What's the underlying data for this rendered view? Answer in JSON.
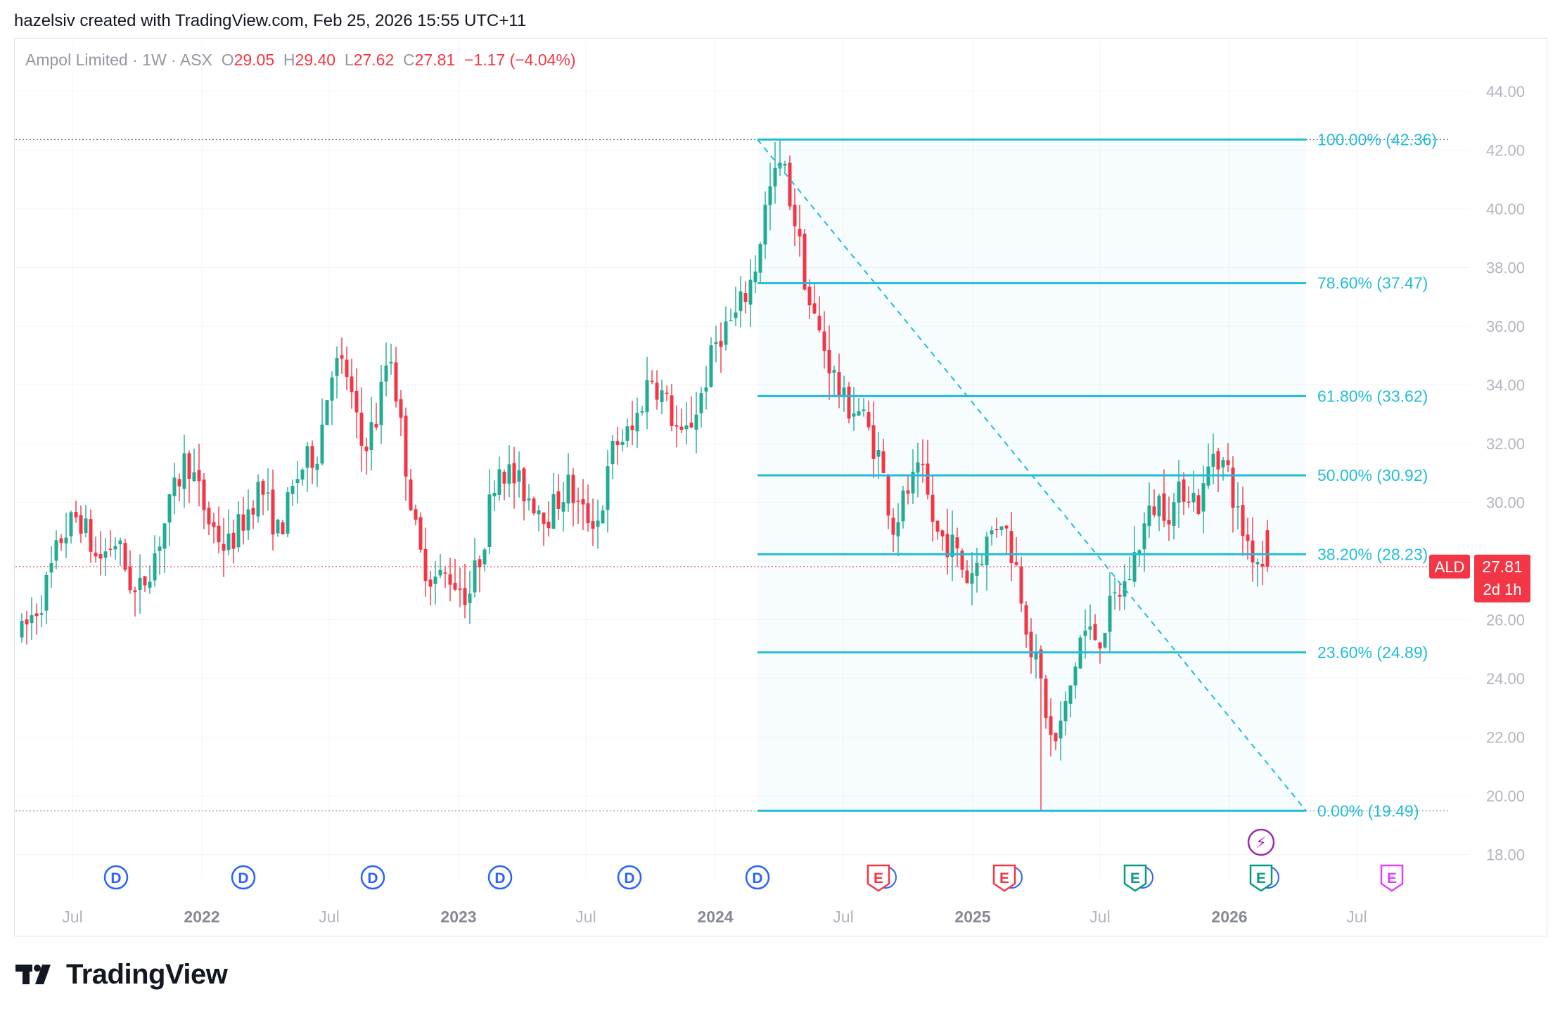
{
  "caption": "hazelsiv created with TradingView.com, Feb 25, 2026 15:55 UTC+11",
  "legend": {
    "symbol_name": "Ampol Limited",
    "interval": "1W",
    "exchange": "ASX",
    "separator": "·",
    "open_label": "O",
    "open": "29.05",
    "high_label": "H",
    "high": "29.40",
    "low_label": "L",
    "low": "27.62",
    "close_label": "C",
    "close": "27.81",
    "change": "−1.17 (−4.04%)"
  },
  "price_badge": {
    "ticker": "ALD",
    "price": "27.81",
    "countdown": "2d 1h"
  },
  "brand": "TradingView",
  "colors": {
    "up": "#22ab94",
    "down": "#f23645",
    "fib": "#22bcd8",
    "dividend": "#2962ff",
    "earnings": "#f23645",
    "earnings_future": "#e040fb",
    "earnings_green": "#089981",
    "axis_text": "#b2b5be",
    "grid": "#f3f4f6"
  },
  "chart_data": {
    "type": "candlestick",
    "interval": "weekly",
    "ylim": [
      17.0,
      45.0
    ],
    "y_ticks": [
      "44.00",
      "42.00",
      "40.00",
      "38.00",
      "36.00",
      "34.00",
      "32.00",
      "30.00",
      "28.00",
      "26.00",
      "24.00",
      "22.00",
      "20.00",
      "18.00"
    ],
    "x_ticks": [
      {
        "label": "Jul",
        "date": "2021-07-01",
        "bold": false
      },
      {
        "label": "2022",
        "date": "2022-01-01",
        "bold": true
      },
      {
        "label": "Jul",
        "date": "2022-07-01",
        "bold": false
      },
      {
        "label": "2023",
        "date": "2023-01-01",
        "bold": true
      },
      {
        "label": "Jul",
        "date": "2023-07-01",
        "bold": false
      },
      {
        "label": "2024",
        "date": "2024-01-01",
        "bold": true
      },
      {
        "label": "Jul",
        "date": "2024-07-01",
        "bold": false
      },
      {
        "label": "2025",
        "date": "2025-01-01",
        "bold": true
      },
      {
        "label": "Jul",
        "date": "2025-07-01",
        "bold": false
      },
      {
        "label": "2026",
        "date": "2026-01-01",
        "bold": true
      },
      {
        "label": "Jul",
        "date": "2026-07-01",
        "bold": false
      }
    ],
    "x_range": [
      "2021-04-20",
      "2026-09-10"
    ],
    "price_path": [
      [
        "2021-04-20",
        25.5
      ],
      [
        "2021-05-20",
        26.8
      ],
      [
        "2021-06-15",
        28.8
      ],
      [
        "2021-07-10",
        29.6
      ],
      [
        "2021-08-05",
        28.0
      ],
      [
        "2021-09-01",
        28.7
      ],
      [
        "2021-09-30",
        26.7
      ],
      [
        "2021-10-25",
        28.2
      ],
      [
        "2021-11-20",
        30.1
      ],
      [
        "2021-12-10",
        31.6
      ],
      [
        "2022-01-10",
        29.4
      ],
      [
        "2022-02-05",
        28.4
      ],
      [
        "2022-03-01",
        29.4
      ],
      [
        "2022-03-25",
        30.6
      ],
      [
        "2022-04-20",
        28.9
      ],
      [
        "2022-05-20",
        31.1
      ],
      [
        "2022-06-15",
        31.8
      ],
      [
        "2022-07-05",
        34.7
      ],
      [
        "2022-07-25",
        34.5
      ],
      [
        "2022-08-15",
        31.9
      ],
      [
        "2022-09-05",
        32.7
      ],
      [
        "2022-09-25",
        35.4
      ],
      [
        "2022-10-15",
        31.8
      ],
      [
        "2022-11-05",
        28.3
      ],
      [
        "2022-11-25",
        27.4
      ],
      [
        "2022-12-20",
        27.5
      ],
      [
        "2023-01-15",
        26.8
      ],
      [
        "2023-02-05",
        28.6
      ],
      [
        "2023-02-25",
        31.4
      ],
      [
        "2023-03-20",
        30.8
      ],
      [
        "2023-04-15",
        30.1
      ],
      [
        "2023-05-10",
        29.6
      ],
      [
        "2023-06-05",
        30.6
      ],
      [
        "2023-06-25",
        29.6
      ],
      [
        "2023-07-20",
        29.4
      ],
      [
        "2023-08-10",
        32.0
      ],
      [
        "2023-09-05",
        32.4
      ],
      [
        "2023-10-01",
        34.4
      ],
      [
        "2023-10-25",
        33.3
      ],
      [
        "2023-11-15",
        32.0
      ],
      [
        "2023-12-10",
        33.5
      ],
      [
        "2024-01-05",
        35.7
      ],
      [
        "2024-01-30",
        36.3
      ],
      [
        "2024-02-25",
        37.8
      ],
      [
        "2024-03-15",
        40.4
      ],
      [
        "2024-04-05",
        41.6
      ],
      [
        "2024-04-25",
        39.4
      ],
      [
        "2024-05-15",
        36.6
      ],
      [
        "2024-06-05",
        35.2
      ],
      [
        "2024-06-30",
        33.4
      ],
      [
        "2024-07-25",
        33.1
      ],
      [
        "2024-08-20",
        31.6
      ],
      [
        "2024-09-10",
        29.2
      ],
      [
        "2024-10-01",
        30.4
      ],
      [
        "2024-10-20",
        31.0
      ],
      [
        "2024-11-10",
        28.9
      ],
      [
        "2024-12-01",
        28.6
      ],
      [
        "2024-12-25",
        27.4
      ],
      [
        "2025-01-20",
        28.6
      ],
      [
        "2025-02-10",
        29.6
      ],
      [
        "2025-03-05",
        27.7
      ],
      [
        "2025-03-25",
        25.1
      ],
      [
        "2025-04-10",
        23.6
      ],
      [
        "2025-04-25",
        21.5
      ],
      [
        "2025-05-15",
        23.1
      ],
      [
        "2025-06-05",
        25.6
      ],
      [
        "2025-06-30",
        25.4
      ],
      [
        "2025-07-20",
        26.6
      ],
      [
        "2025-08-10",
        27.4
      ],
      [
        "2025-08-30",
        29.0
      ],
      [
        "2025-09-20",
        30.1
      ],
      [
        "2025-10-10",
        29.7
      ],
      [
        "2025-10-30",
        30.6
      ],
      [
        "2025-11-20",
        29.9
      ],
      [
        "2025-12-10",
        31.9
      ],
      [
        "2025-12-30",
        31.0
      ],
      [
        "2026-01-15",
        29.3
      ],
      [
        "2026-02-05",
        28.2
      ],
      [
        "2026-02-25",
        27.81
      ]
    ],
    "fib_retracement": {
      "start_date": "2024-03-01",
      "end_date": "2026-04-20",
      "high": 42.36,
      "low": 19.49,
      "levels": [
        {
          "label": "100.00% (42.36)",
          "price": 42.36
        },
        {
          "label": "78.60% (37.47)",
          "price": 37.47
        },
        {
          "label": "61.80% (33.62)",
          "price": 33.62
        },
        {
          "label": "50.00% (30.92)",
          "price": 30.92
        },
        {
          "label": "38.20% (28.23)",
          "price": 28.23
        },
        {
          "label": "23.60% (24.89)",
          "price": 24.89
        },
        {
          "label": "0.00% (19.49)",
          "price": 19.49
        }
      ]
    },
    "events": [
      {
        "type": "dividend",
        "letter": "D",
        "date": "2021-09-01"
      },
      {
        "type": "dividend",
        "letter": "D",
        "date": "2022-03-01"
      },
      {
        "type": "dividend",
        "letter": "D",
        "date": "2022-09-01"
      },
      {
        "type": "dividend",
        "letter": "D",
        "date": "2023-03-01"
      },
      {
        "type": "dividend",
        "letter": "D",
        "date": "2023-09-01"
      },
      {
        "type": "dividend",
        "letter": "D",
        "date": "2024-03-01"
      },
      {
        "type": "earnings",
        "letter": "E",
        "date": "2024-08-20"
      },
      {
        "type": "earnings",
        "letter": "E",
        "date": "2025-02-15"
      },
      {
        "type": "earnings_green",
        "letter": "E",
        "date": "2025-08-20"
      },
      {
        "type": "earnings_green",
        "letter": "E",
        "date": "2026-02-15"
      },
      {
        "type": "earnings_future",
        "letter": "E",
        "date": "2026-08-20"
      }
    ],
    "flash_event": {
      "letter": "⚡",
      "date": "2026-02-15"
    }
  }
}
